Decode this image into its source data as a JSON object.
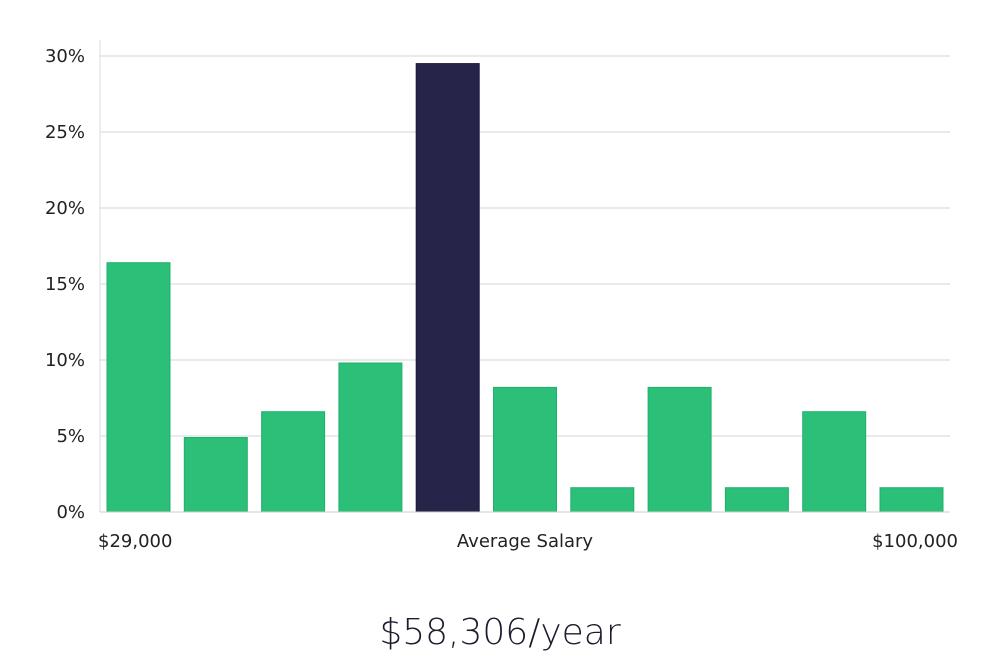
{
  "chart_data": {
    "type": "bar",
    "categories": [
      "1",
      "2",
      "3",
      "4",
      "5",
      "6",
      "7",
      "8",
      "9",
      "10",
      "11"
    ],
    "values": [
      16.4,
      4.9,
      6.6,
      9.8,
      29.5,
      8.2,
      1.6,
      8.2,
      1.6,
      6.6,
      1.6
    ],
    "highlight_index": 4,
    "ylim": [
      0,
      30
    ],
    "yticks": [
      0,
      5,
      10,
      15,
      20,
      25,
      30
    ],
    "ytick_format": "{v}%",
    "grid": true,
    "x_labels": {
      "left": "$29,000",
      "center": "Average Salary",
      "right": "$100,000"
    },
    "colors": {
      "bar": "#2bbf78",
      "highlight": "#27244a"
    }
  },
  "salary_text": "$58,306/year"
}
